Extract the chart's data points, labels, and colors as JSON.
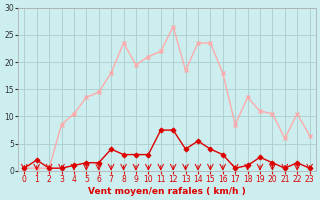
{
  "hours": [
    0,
    1,
    2,
    3,
    4,
    5,
    6,
    7,
    8,
    9,
    10,
    11,
    12,
    13,
    14,
    15,
    16,
    17,
    18,
    19,
    20,
    21,
    22,
    23
  ],
  "wind_avg": [
    0.5,
    2,
    0.5,
    0.5,
    1,
    1.5,
    1.5,
    4,
    3,
    3,
    3,
    7.5,
    7.5,
    4,
    5.5,
    4,
    3,
    0.5,
    1,
    2.5,
    1.5,
    0.5,
    1.5,
    0.5
  ],
  "wind_gust": [
    0.5,
    0.5,
    0.5,
    8.5,
    10.5,
    13.5,
    14.5,
    18,
    23.5,
    19.5,
    21,
    22,
    26.5,
    18.5,
    23.5,
    23.5,
    18,
    8.5,
    13.5,
    11,
    10.5,
    6,
    10.5,
    6.5
  ],
  "avg_color": "#dd0000",
  "gust_color": "#ffaaaa",
  "bg_color": "#cceeee",
  "grid_color": "#aacccc",
  "xlabel": "Vent moyen/en rafales ( km/h )",
  "ylabel": "",
  "ylim": [
    0,
    30
  ],
  "xlim": [
    0,
    23
  ],
  "yticks": [
    0,
    5,
    10,
    15,
    20,
    25,
    30
  ],
  "xticks": [
    0,
    1,
    2,
    3,
    4,
    5,
    6,
    7,
    8,
    9,
    10,
    11,
    12,
    13,
    14,
    15,
    16,
    17,
    18,
    19,
    20,
    21,
    22,
    23
  ],
  "arrow_color": "#dd0000"
}
